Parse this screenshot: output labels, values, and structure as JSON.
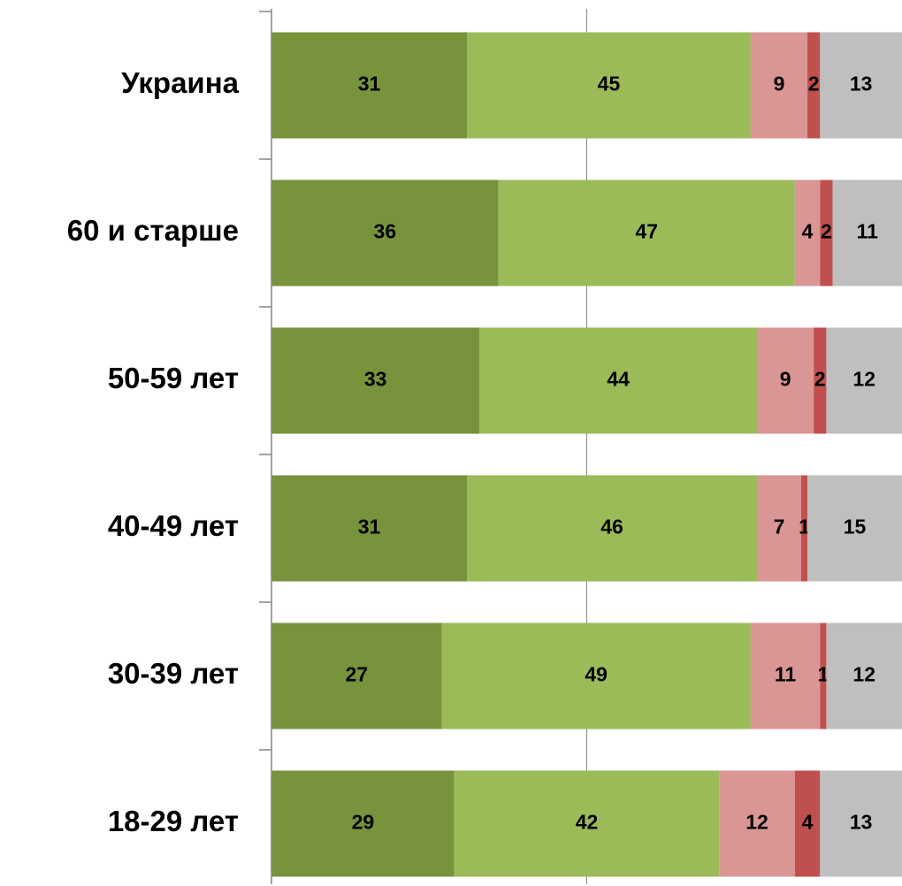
{
  "chart_data": {
    "type": "stacked-bar-horizontal",
    "categories": [
      "Украина",
      "60 и старше",
      "50-59 лет",
      "40-49 лет",
      "30-39 лет",
      "18-29 лет"
    ],
    "series": [
      {
        "color": "#77933c",
        "values": [
          31,
          36,
          33,
          31,
          27,
          29
        ]
      },
      {
        "color": "#9bbb59",
        "values": [
          45,
          47,
          44,
          46,
          49,
          42
        ]
      },
      {
        "color": "#d99694",
        "values": [
          9,
          4,
          9,
          7,
          11,
          12
        ]
      },
      {
        "color": "#c0504d",
        "values": [
          2,
          2,
          2,
          1,
          1,
          4
        ]
      },
      {
        "color": "#bfbfbf",
        "values": [
          13,
          11,
          12,
          15,
          12,
          13
        ]
      }
    ],
    "xlim": [
      0,
      100
    ],
    "xticks": [
      0,
      50,
      100
    ],
    "grid": true
  }
}
